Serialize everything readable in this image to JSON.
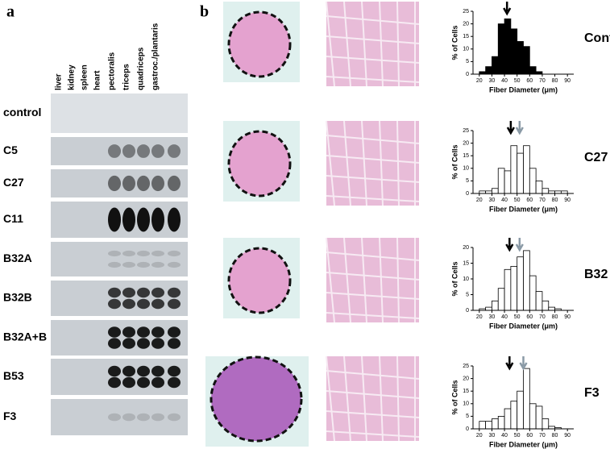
{
  "panel_a": {
    "letter": "a",
    "tissues": [
      "liver",
      "kidney",
      "spleen",
      "heart",
      "pectoralis",
      "triceps",
      "quadriceps",
      "gastroc./plantaris"
    ],
    "lines": [
      "control",
      "C5",
      "C27",
      "C11",
      "B32A",
      "B32B",
      "B32A+B",
      "B53",
      "F3"
    ]
  },
  "panel_b": {
    "letter": "b"
  },
  "chart_data": [
    {
      "type": "histogram",
      "title": "Control",
      "xlabel": "Fiber Diameter (μm)",
      "ylabel": "% of Cells",
      "color": "#000000",
      "bins": [
        15,
        20,
        25,
        30,
        35,
        40,
        45,
        50,
        55,
        60,
        65,
        70,
        75,
        80,
        85,
        90,
        95
      ],
      "values": [
        0,
        1,
        3,
        7,
        20,
        22,
        18,
        13,
        11,
        3,
        1,
        0,
        0,
        0,
        0,
        0
      ],
      "xlim": [
        15,
        95
      ],
      "xticks": [
        20,
        30,
        40,
        50,
        60,
        70,
        80,
        90
      ],
      "ylim": [
        0,
        25
      ],
      "yticks": [
        0,
        5,
        10,
        15,
        20,
        25
      ],
      "arrows": [
        {
          "value": 42,
          "color": "#000000"
        }
      ]
    },
    {
      "type": "histogram",
      "title": "C27",
      "xlabel": "Fiber Diameter (μm)",
      "ylabel": "% of Cells",
      "color": "#ffffff",
      "bins": [
        15,
        20,
        25,
        30,
        35,
        40,
        45,
        50,
        55,
        60,
        65,
        70,
        75,
        80,
        85,
        90,
        95
      ],
      "values": [
        0,
        1,
        1,
        2,
        10,
        9,
        19,
        16,
        19,
        10,
        5,
        2,
        1,
        1,
        1,
        0
      ],
      "xlim": [
        15,
        95
      ],
      "xticks": [
        20,
        30,
        40,
        50,
        60,
        70,
        80,
        90
      ],
      "ylim": [
        0,
        25
      ],
      "yticks": [
        0,
        5,
        10,
        15,
        20,
        25
      ],
      "arrows": [
        {
          "value": 45,
          "color": "#000000"
        },
        {
          "value": 52,
          "color": "#8a9aa6"
        }
      ]
    },
    {
      "type": "histogram",
      "title": "B32",
      "xlabel": "Fiber Diameter (μm)",
      "ylabel": "% of Cells",
      "color": "#ffffff",
      "bins": [
        15,
        20,
        25,
        30,
        35,
        40,
        45,
        50,
        55,
        60,
        65,
        70,
        75,
        80,
        85,
        90,
        95
      ],
      "values": [
        0,
        0.5,
        1,
        3,
        7,
        13,
        14,
        17,
        19,
        11,
        6,
        3,
        1,
        0.5,
        0,
        0
      ],
      "xlim": [
        15,
        95
      ],
      "xticks": [
        20,
        30,
        40,
        50,
        60,
        70,
        80,
        90
      ],
      "ylim": [
        0,
        20
      ],
      "yticks": [
        0,
        5,
        10,
        15,
        20
      ],
      "arrows": [
        {
          "value": 44,
          "color": "#000000"
        },
        {
          "value": 52,
          "color": "#8a9aa6"
        }
      ]
    },
    {
      "type": "histogram",
      "title": "F3",
      "xlabel": "Fiber Diameter (μm)",
      "ylabel": "% of Cells",
      "color": "#ffffff",
      "bins": [
        15,
        20,
        25,
        30,
        35,
        40,
        45,
        50,
        55,
        60,
        65,
        70,
        75,
        80,
        85,
        90,
        95
      ],
      "values": [
        0,
        3,
        3,
        4,
        5,
        8,
        11,
        15,
        24,
        10,
        9,
        4,
        1,
        0.5,
        0,
        0
      ],
      "xlim": [
        15,
        95
      ],
      "xticks": [
        20,
        30,
        40,
        50,
        60,
        70,
        80,
        90
      ],
      "ylim": [
        0,
        25
      ],
      "yticks": [
        0,
        5,
        10,
        15,
        20,
        25
      ],
      "arrows": [
        {
          "value": 44,
          "color": "#000000"
        },
        {
          "value": 55,
          "color": "#8a9aa6"
        }
      ]
    }
  ]
}
